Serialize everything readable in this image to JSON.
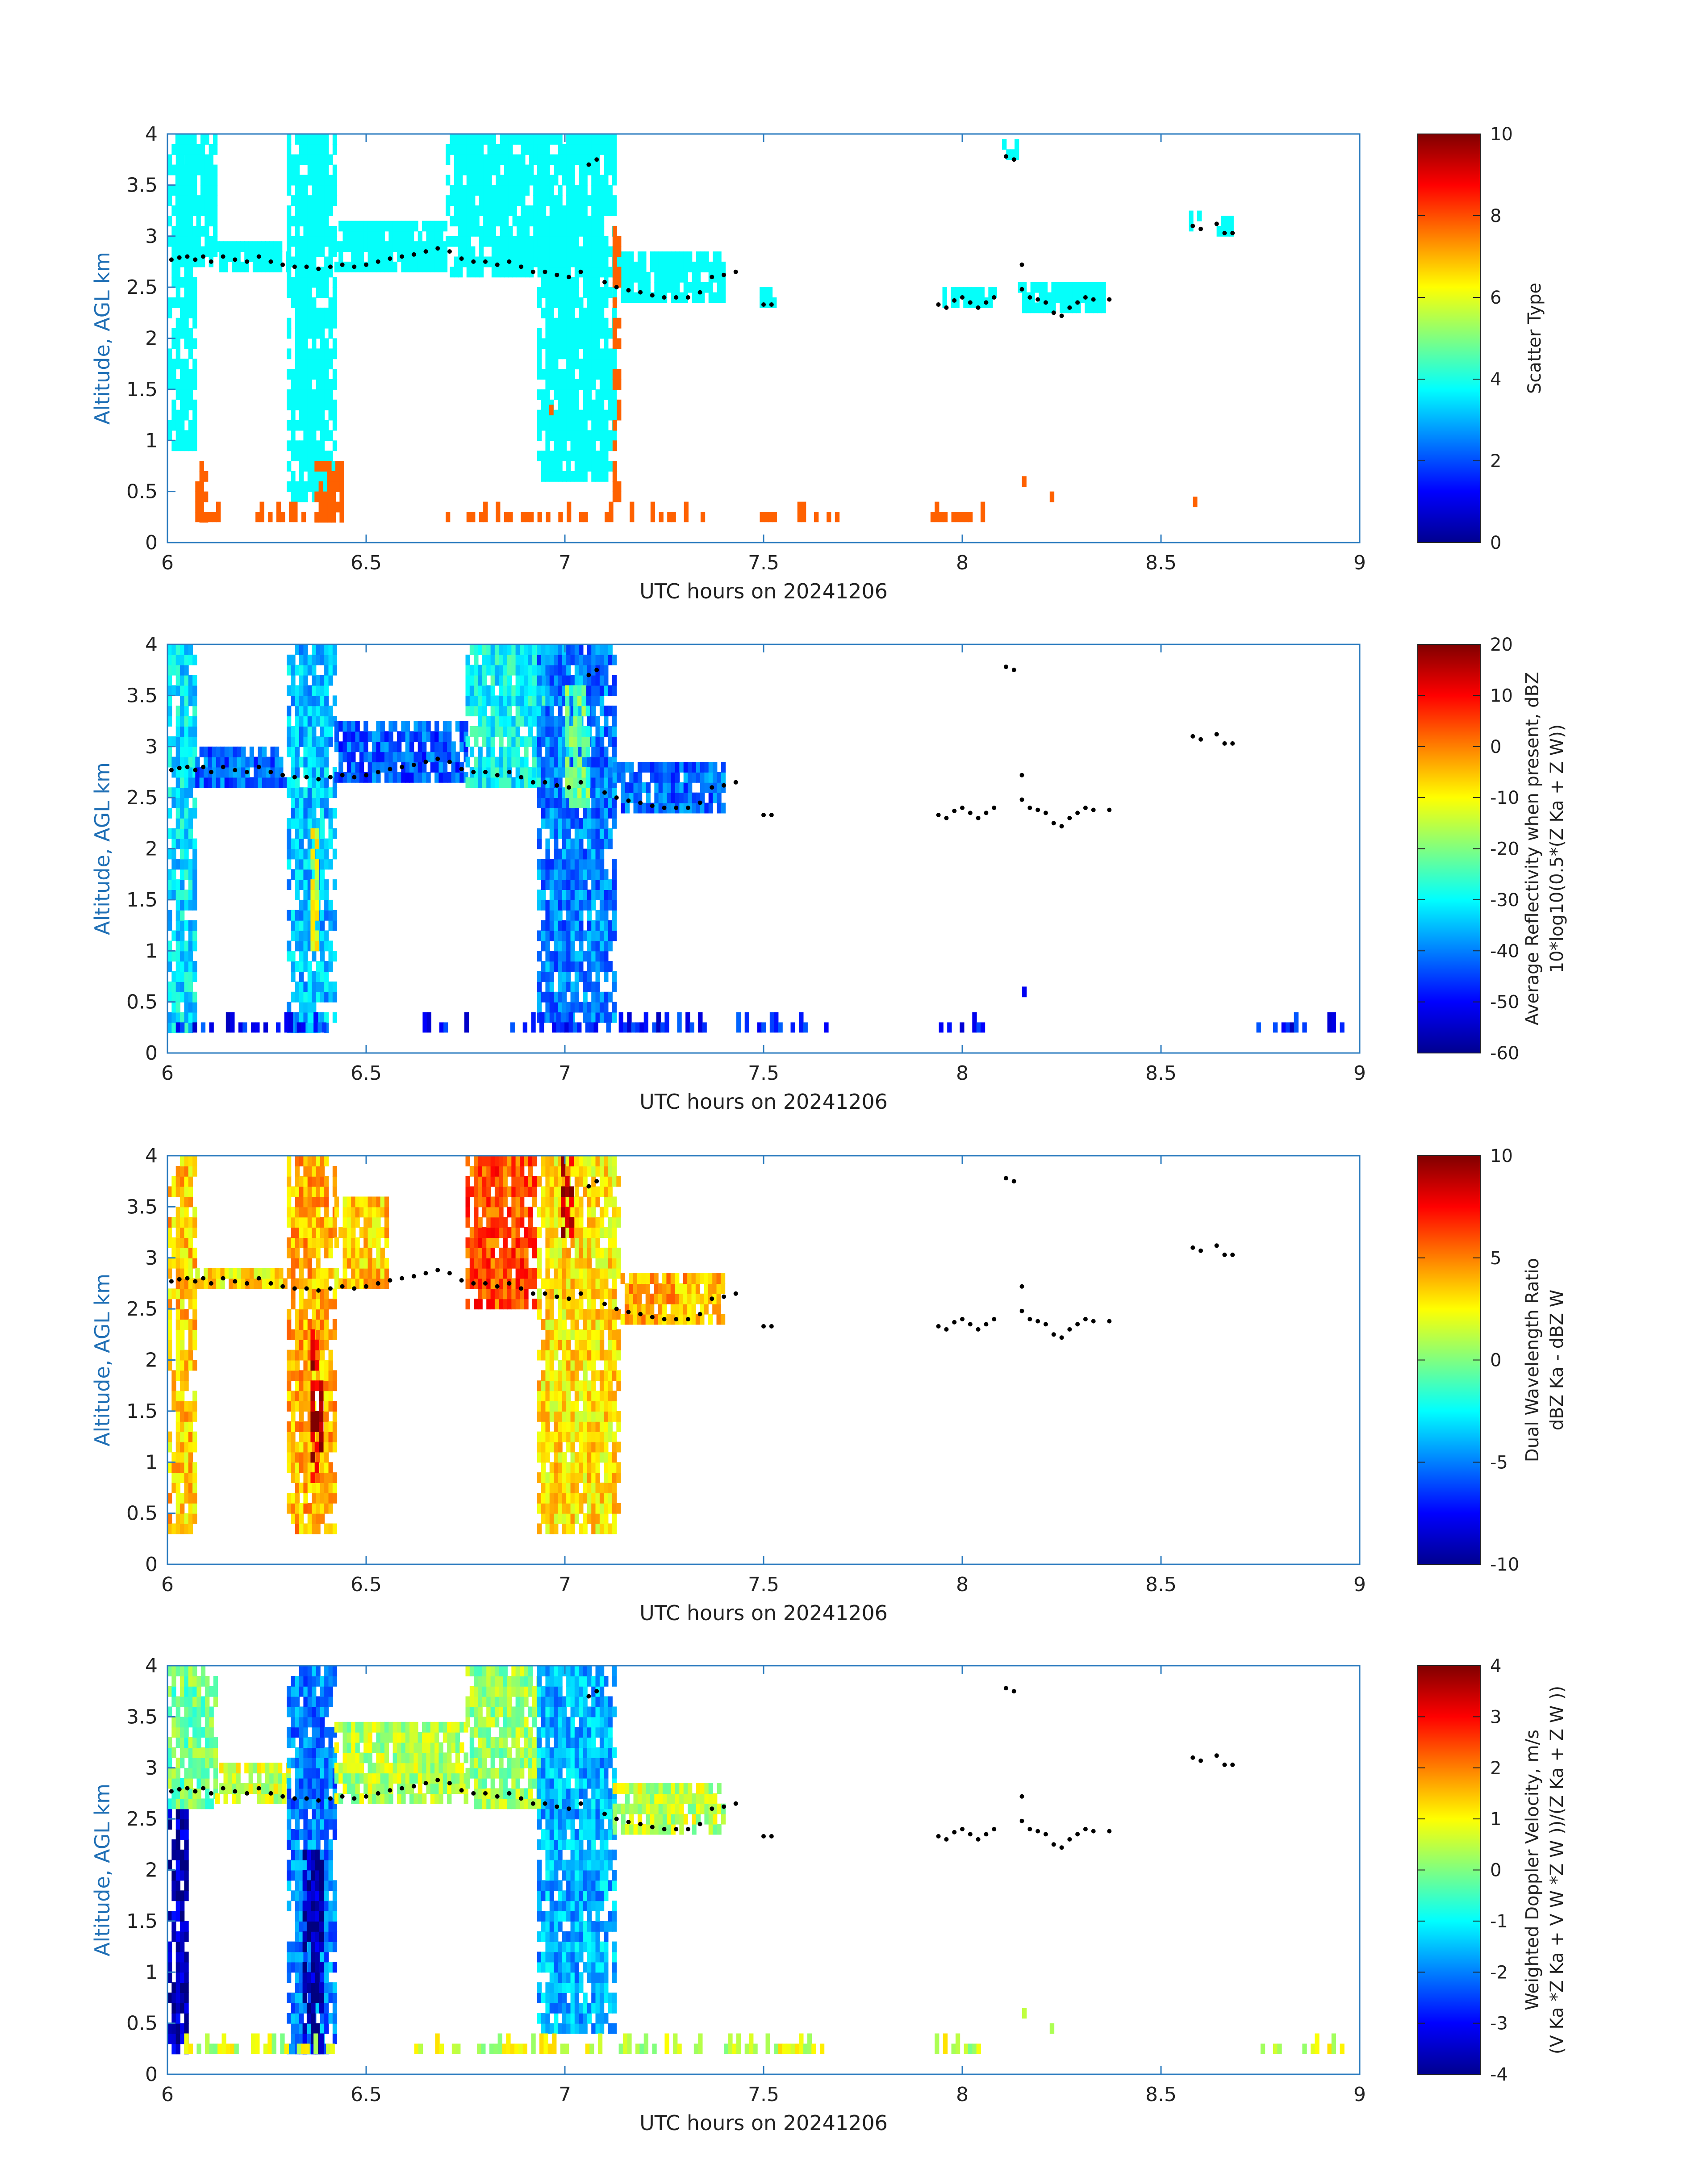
{
  "chart_data": [
    {
      "type": "heatmap",
      "variable": "scatter_type",
      "xlabel": "UTC hours on 20241206",
      "ylabel": "Altitude, AGL km",
      "xlim": [
        6,
        9
      ],
      "ylim": [
        0,
        4
      ],
      "xticks": [
        "6",
        "6.5",
        "7",
        "7.5",
        "8",
        "8.5",
        "9"
      ],
      "yticks": [
        "0",
        "0.5",
        "1",
        "1.5",
        "2",
        "2.5",
        "3",
        "3.5",
        "4"
      ],
      "colorbar": {
        "label": "Scatter Type",
        "label2": "",
        "range": [
          0,
          10
        ],
        "ticks": [
          "0",
          "2",
          "4",
          "6",
          "8",
          "10"
        ],
        "colormap": "jet"
      },
      "regions": [
        {
          "x0": 6.0,
          "x1": 6.07,
          "y0": 0.9,
          "y1": 3.9,
          "value": 3.8
        },
        {
          "x0": 6.02,
          "x1": 6.12,
          "y0": 2.7,
          "y1": 4.0,
          "value": 3.8
        },
        {
          "x0": 6.12,
          "x1": 6.3,
          "y0": 2.65,
          "y1": 2.9,
          "value": 3.8
        },
        {
          "x0": 6.3,
          "x1": 6.42,
          "y0": 0.4,
          "y1": 4.0,
          "value": 3.8
        },
        {
          "x0": 6.42,
          "x1": 6.7,
          "y0": 2.65,
          "y1": 3.1,
          "value": 3.8
        },
        {
          "x0": 6.7,
          "x1": 6.95,
          "y0": 2.6,
          "y1": 4.0,
          "value": 3.8
        },
        {
          "x0": 6.93,
          "x1": 7.12,
          "y0": 0.6,
          "y1": 4.0,
          "value": 3.8
        },
        {
          "x0": 7.12,
          "x1": 7.4,
          "y0": 2.35,
          "y1": 2.85,
          "value": 3.8
        },
        {
          "x0": 7.49,
          "x1": 7.53,
          "y0": 2.3,
          "y1": 2.5,
          "value": 3.8
        },
        {
          "x0": 7.95,
          "x1": 8.08,
          "y0": 2.3,
          "y1": 2.5,
          "value": 3.8
        },
        {
          "x0": 8.1,
          "x1": 8.15,
          "y0": 3.75,
          "y1": 3.95,
          "value": 3.8
        },
        {
          "x0": 8.14,
          "x1": 8.36,
          "y0": 2.25,
          "y1": 2.5,
          "value": 3.8
        },
        {
          "x0": 8.57,
          "x1": 8.6,
          "y0": 3.05,
          "y1": 3.25,
          "value": 3.8
        },
        {
          "x0": 8.64,
          "x1": 8.68,
          "y0": 3.0,
          "y1": 3.2,
          "value": 3.8
        },
        {
          "x0": 7.12,
          "x1": 7.14,
          "y0": 0.4,
          "y1": 3.1,
          "value": 7.8
        },
        {
          "x0": 6.07,
          "x1": 6.1,
          "y0": 0.2,
          "y1": 0.75,
          "value": 7.8
        },
        {
          "x0": 6.37,
          "x1": 6.44,
          "y0": 0.2,
          "y1": 0.75,
          "value": 7.8
        },
        {
          "x0": 6.96,
          "x1": 6.98,
          "y0": 1.15,
          "y1": 1.3,
          "value": 7.8
        },
        {
          "x0": 8.15,
          "x1": 8.16,
          "y0": 0.55,
          "y1": 0.65,
          "value": 7.8
        },
        {
          "x0": 8.22,
          "x1": 8.23,
          "y0": 0.4,
          "y1": 0.45,
          "value": 7.8
        },
        {
          "x0": 8.58,
          "x1": 8.59,
          "y0": 0.35,
          "y1": 0.4,
          "value": 7.8
        }
      ],
      "ground_band": {
        "y0": 0.2,
        "y1": 0.4,
        "x_ranges": [
          [
            6.07,
            6.16
          ],
          [
            6.19,
            6.34
          ],
          [
            6.37,
            6.45
          ],
          [
            6.7,
            7.06
          ],
          [
            7.1,
            7.36
          ],
          [
            7.48,
            7.68
          ],
          [
            7.92,
            8.06
          ]
        ],
        "value": 7.8,
        "density": 0.45
      }
    },
    {
      "type": "heatmap",
      "variable": "reflectivity",
      "xlabel": "UTC hours on 20241206",
      "ylabel": "Altitude, AGL km",
      "xlim": [
        6,
        9
      ],
      "ylim": [
        0,
        4
      ],
      "xticks": [
        "6",
        "6.5",
        "7",
        "7.5",
        "8",
        "8.5",
        "9"
      ],
      "yticks": [
        "0",
        "0.5",
        "1",
        "1.5",
        "2",
        "2.5",
        "3",
        "3.5",
        "4"
      ],
      "colorbar": {
        "label": "Average Reflectivity when present, dBZ",
        "label2": "10*log10(0.5*(Z Ka + Z W))",
        "range": [
          -60,
          20
        ],
        "ticks": [
          "-60",
          "-50",
          "-40",
          "-30",
          "-20",
          "-10",
          "0",
          "10",
          "20"
        ],
        "colormap": "jet"
      },
      "regions": [
        {
          "x0": 6.0,
          "x1": 6.07,
          "y0": 0.2,
          "y1": 4.0,
          "value": -32
        },
        {
          "x0": 6.07,
          "x1": 6.3,
          "y0": 2.6,
          "y1": 3.0,
          "value": -42
        },
        {
          "x0": 6.3,
          "x1": 6.42,
          "y0": 0.2,
          "y1": 4.0,
          "value": -35
        },
        {
          "x0": 6.36,
          "x1": 6.38,
          "y0": 1.0,
          "y1": 2.2,
          "value": -12
        },
        {
          "x0": 6.42,
          "x1": 6.75,
          "y0": 2.65,
          "y1": 3.2,
          "value": -43
        },
        {
          "x0": 6.75,
          "x1": 6.95,
          "y0": 2.6,
          "y1": 4.0,
          "value": -30
        },
        {
          "x0": 6.93,
          "x1": 7.12,
          "y0": 0.3,
          "y1": 4.0,
          "value": -40
        },
        {
          "x0": 7.0,
          "x1": 7.06,
          "y0": 2.4,
          "y1": 3.6,
          "value": -22
        },
        {
          "x0": 7.12,
          "x1": 7.4,
          "y0": 2.35,
          "y1": 2.85,
          "value": -42
        },
        {
          "x0": 8.14,
          "x1": 8.16,
          "y0": 0.55,
          "y1": 0.65,
          "value": -50
        },
        {
          "x0": 8.22,
          "x1": 8.23,
          "y0": 0.4,
          "y1": 0.45,
          "value": -25
        },
        {
          "x0": 8.58,
          "x1": 8.59,
          "y0": 0.35,
          "y1": 0.45,
          "value": -42
        }
      ],
      "ground_band": {
        "y0": 0.2,
        "y1": 0.4,
        "x_ranges": [
          [
            6.0,
            6.45
          ],
          [
            6.6,
            7.36
          ],
          [
            7.4,
            7.68
          ],
          [
            7.92,
            8.06
          ],
          [
            8.74,
            8.96
          ]
        ],
        "value": -48,
        "density": 0.5
      }
    },
    {
      "type": "heatmap",
      "variable": "dual_wavelength_ratio",
      "xlabel": "UTC hours on 20241206",
      "ylabel": "Altitude, AGL km",
      "xlim": [
        6,
        9
      ],
      "ylim": [
        0,
        4
      ],
      "xticks": [
        "6",
        "6.5",
        "7",
        "7.5",
        "8",
        "8.5",
        "9"
      ],
      "yticks": [
        "0",
        "0.5",
        "1",
        "1.5",
        "2",
        "2.5",
        "3",
        "3.5",
        "4"
      ],
      "colorbar": {
        "label": "Dual Wavelength Ratio",
        "label2": "dBZ Ka - dBZ W",
        "range": [
          -10,
          10
        ],
        "ticks": [
          "-10",
          "-5",
          "0",
          "5",
          "10"
        ],
        "colormap": "jet"
      },
      "regions": [
        {
          "x0": 6.0,
          "x1": 6.07,
          "y0": 0.3,
          "y1": 4.0,
          "value": 3.5
        },
        {
          "x0": 6.07,
          "x1": 6.3,
          "y0": 2.7,
          "y1": 2.9,
          "value": 3.0
        },
        {
          "x0": 6.3,
          "x1": 6.42,
          "y0": 0.3,
          "y1": 4.0,
          "value": 4.0
        },
        {
          "x0": 6.36,
          "x1": 6.39,
          "y0": 0.8,
          "y1": 2.3,
          "value": 9.0
        },
        {
          "x0": 6.42,
          "x1": 6.55,
          "y0": 2.7,
          "y1": 3.6,
          "value": 3.5
        },
        {
          "x0": 6.75,
          "x1": 6.92,
          "y0": 2.5,
          "y1": 4.0,
          "value": 6.0
        },
        {
          "x0": 6.93,
          "x1": 7.14,
          "y0": 0.3,
          "y1": 4.0,
          "value": 3.0
        },
        {
          "x0": 6.99,
          "x1": 7.02,
          "y0": 3.2,
          "y1": 4.0,
          "value": 9.0
        },
        {
          "x0": 7.14,
          "x1": 7.4,
          "y0": 2.35,
          "y1": 2.85,
          "value": 4.0
        }
      ]
    },
    {
      "type": "heatmap",
      "variable": "doppler_velocity",
      "xlabel": "UTC hours on 20241206",
      "ylabel": "Altitude, AGL km",
      "xlim": [
        6,
        9
      ],
      "ylim": [
        0,
        4
      ],
      "xticks": [
        "6",
        "6.5",
        "7",
        "7.5",
        "8",
        "8.5",
        "9"
      ],
      "yticks": [
        "0",
        "0.5",
        "1",
        "1.5",
        "2",
        "2.5",
        "3",
        "3.5",
        "4"
      ],
      "colorbar": {
        "label": "Weighted Doppler Velocity, m/s",
        "label2": "(V Ka *Z Ka + V W *Z W ))/(Z Ka + Z W ))",
        "range": [
          -4,
          4
        ],
        "ticks": [
          "-4",
          "-3",
          "-2",
          "-1",
          "0",
          "1",
          "2",
          "3",
          "4"
        ],
        "colormap": "jet"
      },
      "regions": [
        {
          "x0": 6.0,
          "x1": 6.05,
          "y0": 0.2,
          "y1": 2.6,
          "value": -3.6
        },
        {
          "x0": 6.0,
          "x1": 6.12,
          "y0": 2.6,
          "y1": 4.0,
          "value": -0.1
        },
        {
          "x0": 6.12,
          "x1": 6.3,
          "y0": 2.65,
          "y1": 3.0,
          "value": 0.6
        },
        {
          "x0": 6.3,
          "x1": 6.42,
          "y0": 0.2,
          "y1": 4.0,
          "value": -2.0
        },
        {
          "x0": 6.34,
          "x1": 6.39,
          "y0": 0.2,
          "y1": 2.2,
          "value": -3.7
        },
        {
          "x0": 6.42,
          "x1": 6.75,
          "y0": 2.65,
          "y1": 3.4,
          "value": 0.4
        },
        {
          "x0": 6.75,
          "x1": 6.93,
          "y0": 2.6,
          "y1": 4.0,
          "value": 0.2
        },
        {
          "x0": 6.93,
          "x1": 7.12,
          "y0": 0.4,
          "y1": 4.0,
          "value": -1.6
        },
        {
          "x0": 7.12,
          "x1": 7.4,
          "y0": 2.35,
          "y1": 2.85,
          "value": 0.5
        },
        {
          "x0": 8.14,
          "x1": 8.16,
          "y0": 0.55,
          "y1": 0.65,
          "value": 0.3
        },
        {
          "x0": 8.22,
          "x1": 8.23,
          "y0": 0.4,
          "y1": 0.45,
          "value": 0.3
        },
        {
          "x0": 8.58,
          "x1": 8.59,
          "y0": 0.35,
          "y1": 0.45,
          "value": 0.3
        }
      ],
      "ground_band": {
        "y0": 0.2,
        "y1": 0.4,
        "x_ranges": [
          [
            6.0,
            6.45
          ],
          [
            6.6,
            7.36
          ],
          [
            7.4,
            7.68
          ],
          [
            7.92,
            8.06
          ],
          [
            8.74,
            8.96
          ]
        ],
        "value": 0.6,
        "density": 0.55
      }
    }
  ],
  "cloud_top_markers": {
    "x": [
      6.01,
      6.03,
      6.05,
      6.07,
      6.09,
      6.11,
      6.14,
      6.17,
      6.2,
      6.23,
      6.26,
      6.29,
      6.32,
      6.35,
      6.38,
      6.41,
      6.44,
      6.47,
      6.5,
      6.53,
      6.56,
      6.59,
      6.62,
      6.65,
      6.68,
      6.71,
      6.74,
      6.77,
      6.8,
      6.83,
      6.86,
      6.89,
      6.92,
      6.95,
      6.98,
      7.01,
      7.04,
      7.06,
      7.08,
      7.1,
      7.13,
      7.16,
      7.19,
      7.22,
      7.25,
      7.28,
      7.31,
      7.34,
      7.37,
      7.4,
      7.43,
      7.5,
      7.52,
      7.94,
      7.96,
      7.98,
      8.0,
      8.02,
      8.04,
      8.06,
      8.08,
      8.11,
      8.13,
      8.15,
      8.15,
      8.17,
      8.19,
      8.21,
      8.23,
      8.25,
      8.27,
      8.29,
      8.31,
      8.33,
      8.37,
      8.58,
      8.6,
      8.64,
      8.66,
      8.68
    ],
    "y": [
      2.77,
      2.79,
      2.8,
      2.77,
      2.8,
      2.75,
      2.8,
      2.77,
      2.75,
      2.8,
      2.75,
      2.72,
      2.7,
      2.7,
      2.68,
      2.7,
      2.72,
      2.7,
      2.72,
      2.75,
      2.78,
      2.8,
      2.82,
      2.85,
      2.88,
      2.85,
      2.78,
      2.75,
      2.75,
      2.72,
      2.75,
      2.7,
      2.65,
      2.65,
      2.62,
      2.6,
      2.65,
      3.7,
      3.75,
      2.55,
      2.5,
      2.47,
      2.45,
      2.42,
      2.4,
      2.4,
      2.4,
      2.45,
      2.6,
      2.62,
      2.65,
      2.33,
      2.33,
      2.33,
      2.3,
      2.37,
      2.4,
      2.35,
      2.3,
      2.35,
      2.4,
      3.78,
      3.75,
      2.72,
      2.48,
      2.4,
      2.38,
      2.35,
      2.25,
      2.22,
      2.3,
      2.35,
      2.4,
      2.38,
      2.38,
      3.1,
      3.07,
      3.12,
      3.03,
      3.03
    ]
  }
}
